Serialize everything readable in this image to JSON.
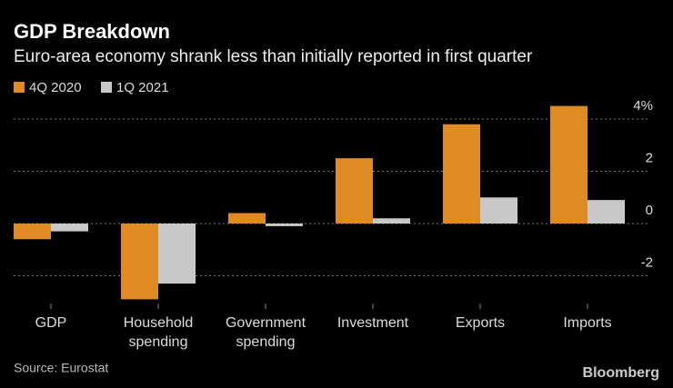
{
  "chart_data": {
    "type": "bar",
    "title": "GDP Breakdown",
    "subtitle": "Euro-area economy shrank less than initially reported in first quarter",
    "categories": [
      "GDP",
      "Household spending",
      "Government spending",
      "Investment",
      "Exports",
      "Imports"
    ],
    "series": [
      {
        "name": "4Q 2020",
        "color": "#e08a24",
        "values": [
          -0.6,
          -2.9,
          0.4,
          2.5,
          3.8,
          4.5
        ]
      },
      {
        "name": "1Q 2021",
        "color": "#c8c8c8",
        "values": [
          -0.3,
          -2.3,
          -0.1,
          0.2,
          1.0,
          0.9
        ]
      }
    ],
    "ylim": [
      -3,
      5
    ],
    "yticks": [
      -2,
      0,
      2,
      {
        "value": 4,
        "label": "4%"
      }
    ],
    "grid": true,
    "source": "Source: Eurostat",
    "brand": "Bloomberg"
  }
}
